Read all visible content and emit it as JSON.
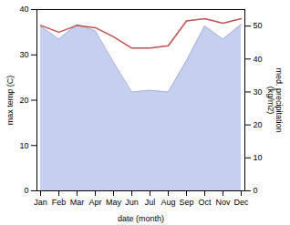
{
  "chart_data": {
    "type": "line",
    "categories": [
      "Jan",
      "Feb",
      "Mar",
      "Apr",
      "May",
      "Jun",
      "Jul",
      "Aug",
      "Sep",
      "Oct",
      "Nov",
      "Dec"
    ],
    "xlabel": "date (month)",
    "ylabel": "max temp (C)",
    "y2label": "med. precipitation\n(kg/m2)",
    "ylim": [
      0,
      40
    ],
    "yticks": [
      0,
      10,
      20,
      30,
      40
    ],
    "y2lim": [
      0,
      55
    ],
    "y2ticks": [
      0,
      10,
      20,
      30,
      40,
      50
    ],
    "grid": false,
    "series": [
      {
        "type": "area",
        "axis": "y2",
        "color": "#c5cff0",
        "values": [
          50.0,
          46.0,
          50.5,
          48.5,
          39.0,
          30.0,
          30.5,
          30.0,
          39.5,
          50.0,
          46.0,
          50.5
        ]
      },
      {
        "type": "line",
        "color": "#c0504d",
        "values": [
          36.5,
          35.0,
          36.5,
          36.0,
          34.0,
          31.5,
          31.5,
          32.0,
          37.5,
          38.0,
          37.0,
          38.0
        ]
      }
    ]
  }
}
